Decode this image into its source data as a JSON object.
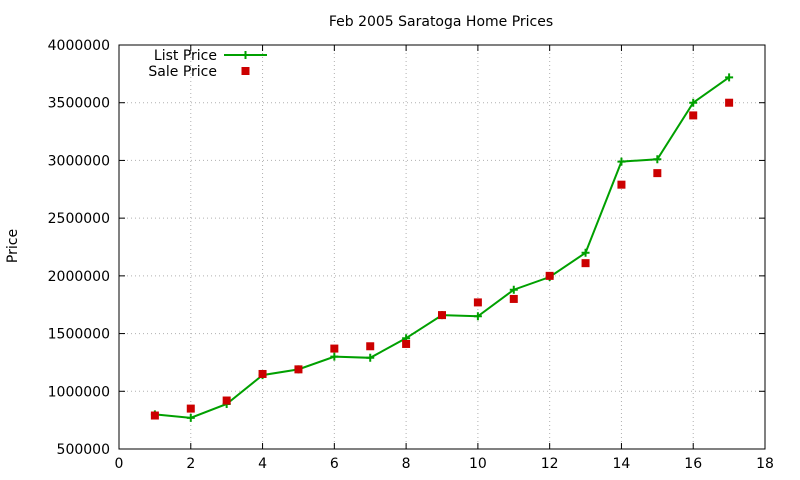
{
  "chart_data": {
    "type": "line",
    "title": "Feb 2005 Saratoga Home Prices",
    "xlabel": "",
    "ylabel": "Price",
    "xlim": [
      0,
      18
    ],
    "ylim": [
      500000,
      4000000
    ],
    "x_ticks": [
      0,
      2,
      4,
      6,
      8,
      10,
      12,
      14,
      16,
      18
    ],
    "y_ticks": [
      500000,
      1000000,
      1500000,
      2000000,
      2500000,
      3000000,
      3500000,
      4000000
    ],
    "grid": true,
    "legend_position": "top-left",
    "series": [
      {
        "name": "List Price",
        "style": "line-with-plus-markers",
        "color": "#00a000",
        "x": [
          1,
          2,
          3,
          4,
          5,
          6,
          7,
          8,
          9,
          10,
          11,
          12,
          13,
          14,
          15,
          16,
          17
        ],
        "values": [
          800000,
          770000,
          890000,
          1140000,
          1190000,
          1300000,
          1290000,
          1460000,
          1660000,
          1650000,
          1880000,
          1990000,
          2200000,
          2990000,
          3010000,
          3500000,
          3720000
        ]
      },
      {
        "name": "Sale Price",
        "style": "square-markers",
        "color": "#cc0000",
        "x": [
          1,
          2,
          3,
          4,
          5,
          6,
          7,
          8,
          9,
          10,
          11,
          12,
          13,
          14,
          15,
          16,
          17
        ],
        "values": [
          790000,
          850000,
          920000,
          1150000,
          1190000,
          1370000,
          1390000,
          1410000,
          1660000,
          1770000,
          1800000,
          2000000,
          2110000,
          2790000,
          2890000,
          3390000,
          3500000
        ]
      }
    ]
  }
}
